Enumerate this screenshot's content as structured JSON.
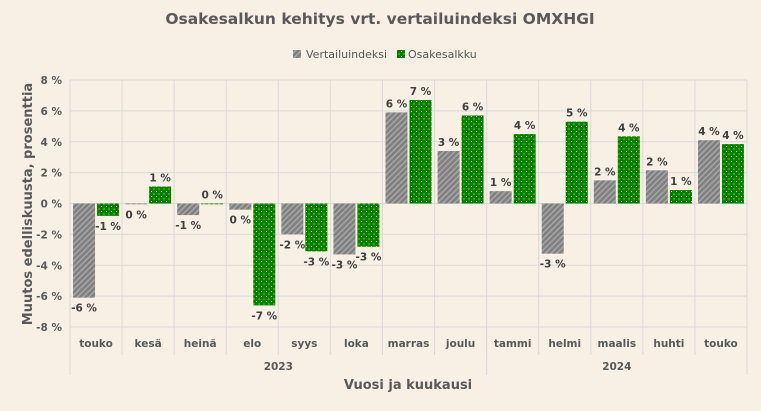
{
  "chart_data": {
    "type": "bar",
    "title": "Osakesalkun kehitys vrt. vertailuindeksi OMXHGI",
    "xlabel": "Vuosi ja kuukausi",
    "ylabel": "Muutos edelliskuusta, prosenttia",
    "ylim": [
      -8,
      8
    ],
    "yticks": [
      8,
      6,
      4,
      2,
      0,
      -2,
      -4,
      -6,
      -8
    ],
    "ytick_labels": [
      "8 %",
      "6 %",
      "4 %",
      "2 %",
      "0 %",
      "-2 %",
      "-4 %",
      "-6 %",
      "-8 %"
    ],
    "grid": true,
    "legend_position": "top",
    "categories": [
      "touko",
      "kesä",
      "heinä",
      "elo",
      "syys",
      "loka",
      "marras",
      "joulu",
      "tammi",
      "helmi",
      "maalis",
      "huhti",
      "touko"
    ],
    "year_groups": [
      {
        "label": "2023",
        "count": 8
      },
      {
        "label": "2024",
        "count": 5
      }
    ],
    "series": [
      {
        "name": "Vertailuindeksi",
        "color": "#808080",
        "pattern_color": "#a6a6a6",
        "values": [
          -6.1,
          -0.05,
          -0.75,
          -0.4,
          -2.0,
          -3.3,
          5.9,
          3.4,
          0.8,
          -3.25,
          1.5,
          2.15,
          4.1
        ],
        "labels": [
          "-6 %",
          "0 %",
          "-1 %",
          "0 %",
          "-2 %",
          "-3 %",
          "6 %",
          "3 %",
          "1 %",
          "-3 %",
          "2 %",
          "2 %",
          "4 %"
        ]
      },
      {
        "name": "Osakesalkku",
        "color": "#008000",
        "pattern_color": "#ffff00",
        "values": [
          -0.8,
          1.1,
          0.0,
          -6.6,
          -3.1,
          -2.8,
          6.7,
          5.7,
          4.5,
          5.3,
          4.35,
          0.87,
          3.85
        ],
        "labels": [
          "-1 %",
          "1 %",
          "0 %",
          "-7 %",
          "-3 %",
          "-3 %",
          "7 %",
          "6 %",
          "4 %",
          "5 %",
          "4 %",
          "1 %",
          "4 %"
        ]
      }
    ]
  }
}
